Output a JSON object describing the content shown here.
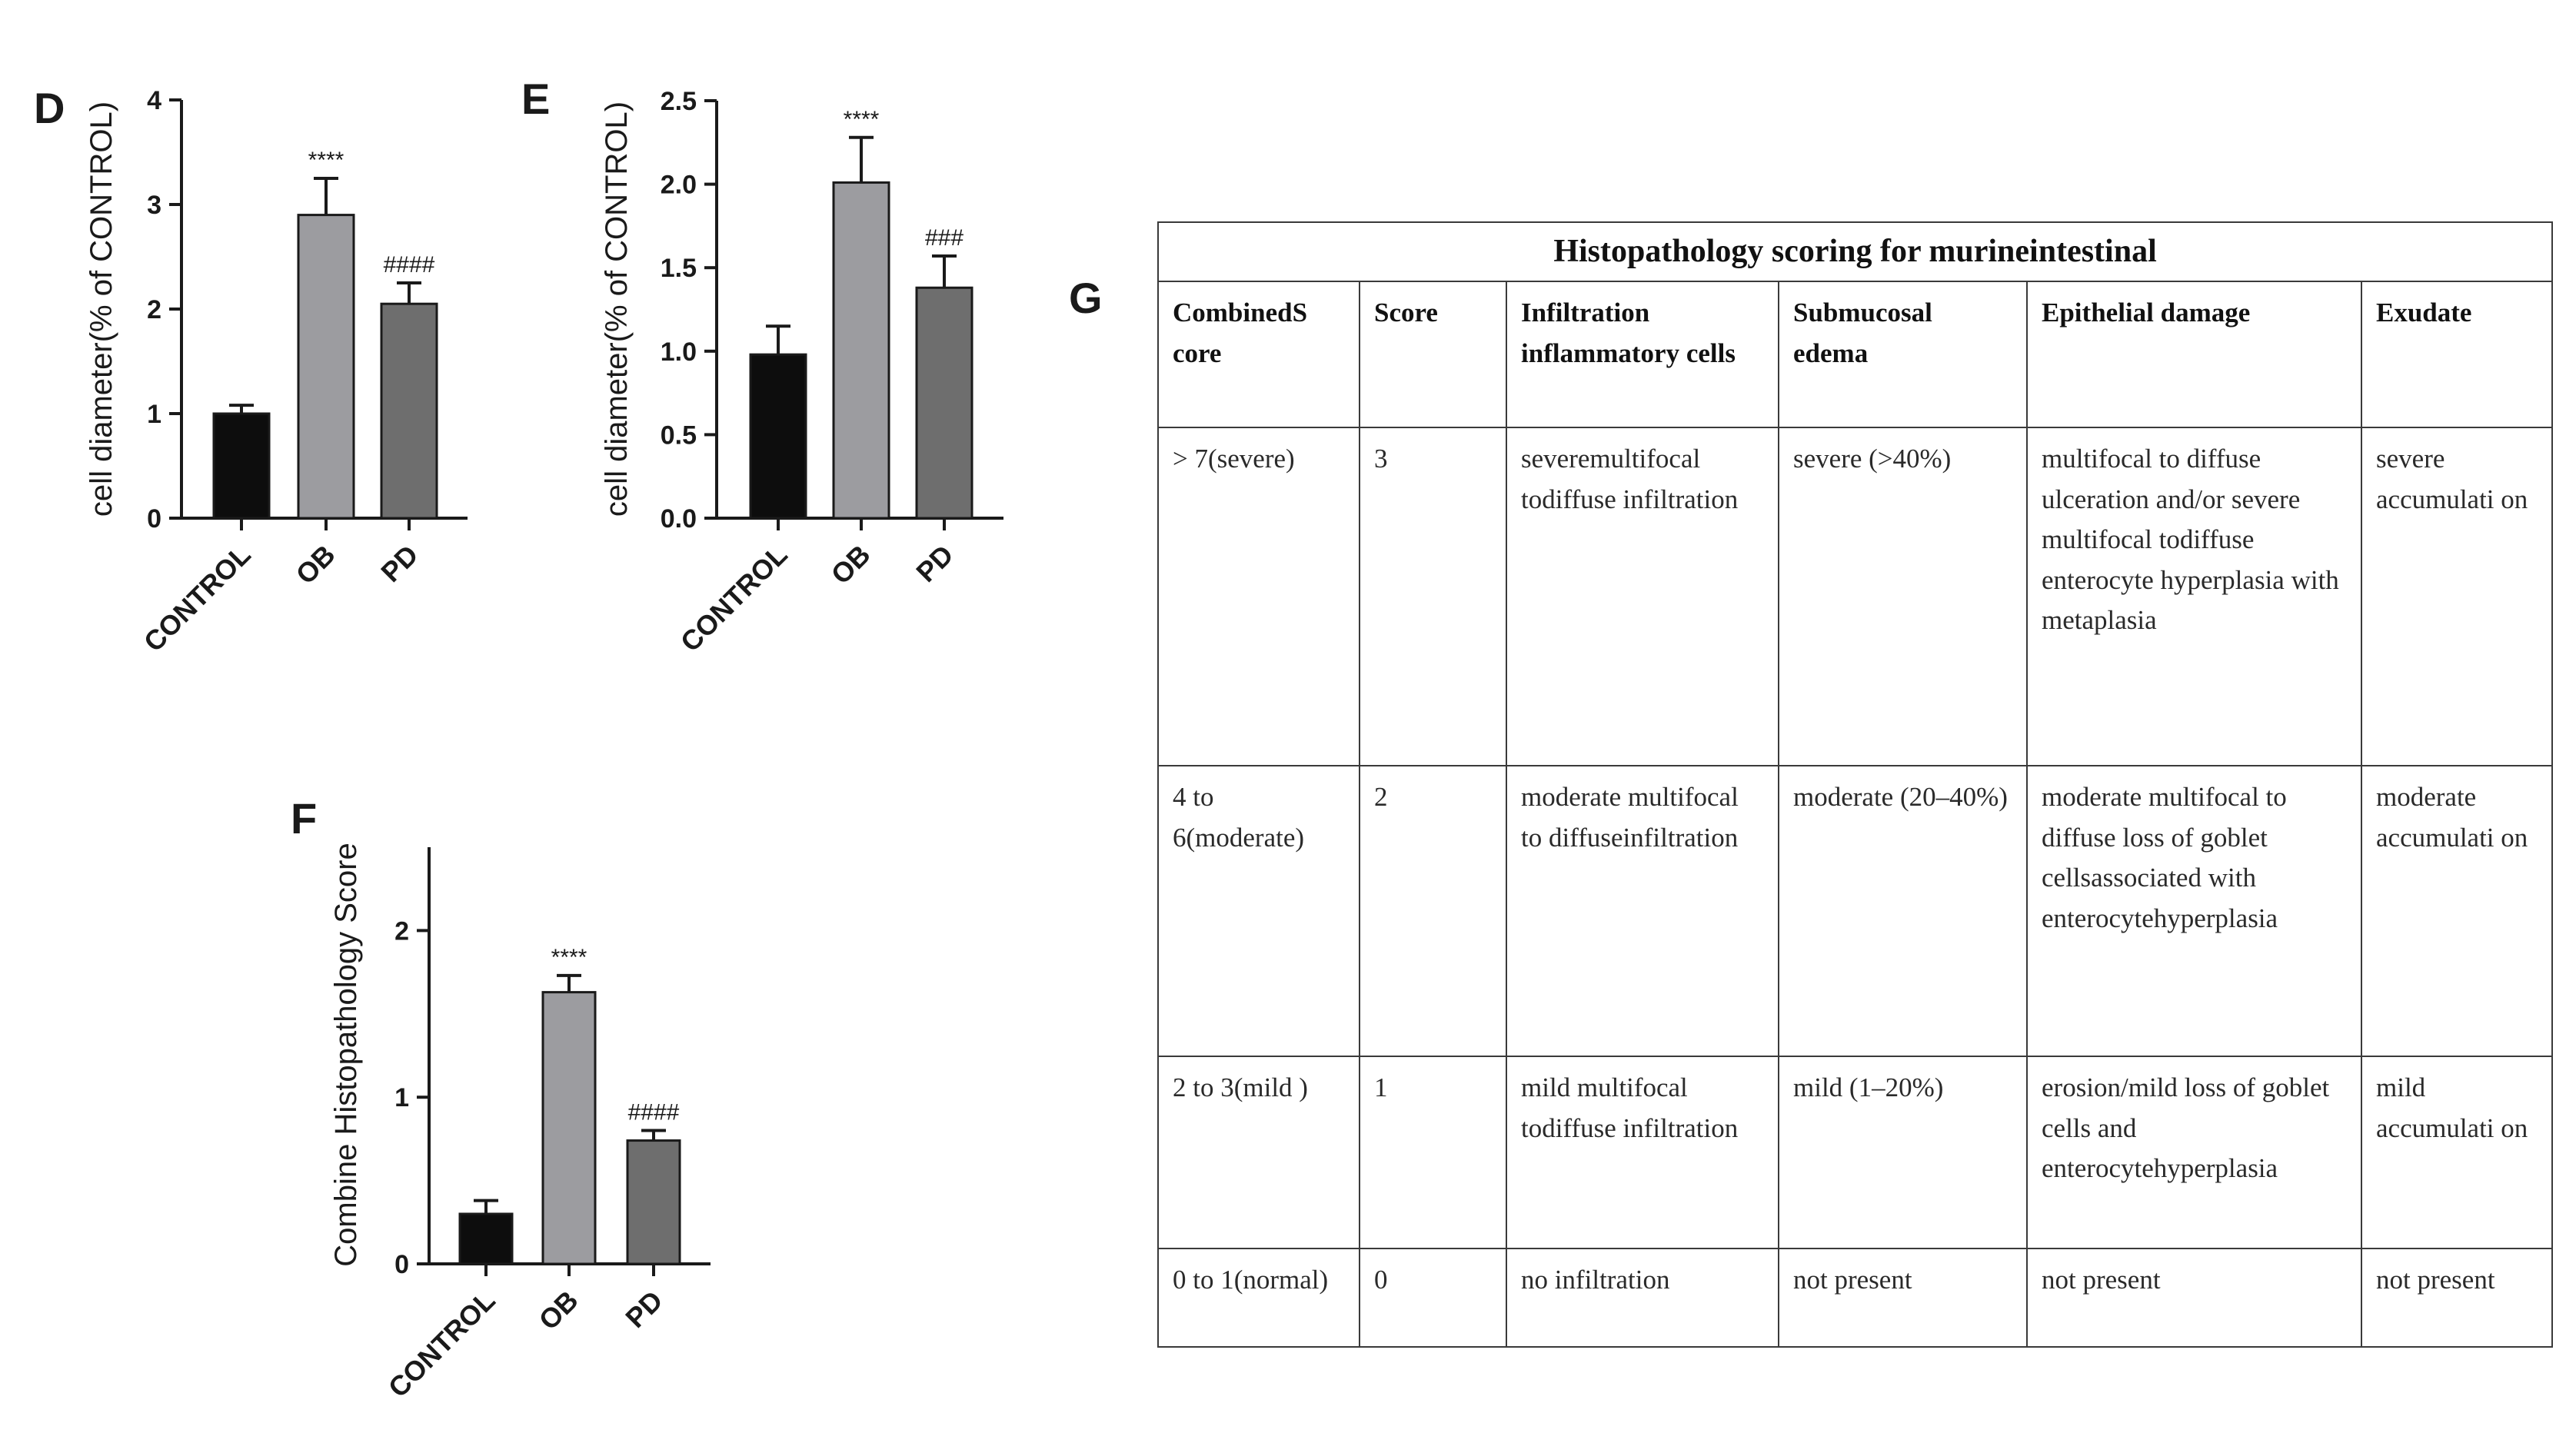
{
  "panels": {
    "d": "D",
    "e": "E",
    "f": "F",
    "g": "G"
  },
  "chart_data": [
    {
      "id": "D",
      "type": "bar",
      "categories": [
        "CONTROL",
        "OB",
        "PD"
      ],
      "values": [
        1.0,
        2.9,
        2.05
      ],
      "errors": [
        0.08,
        0.35,
        0.2
      ],
      "annotations": [
        "",
        "****",
        "####"
      ],
      "colors": [
        "#0d0d0d",
        "#9c9ca0",
        "#6e6e6e"
      ],
      "ylabel": "cell diameter(% of CONTROL)",
      "ylim": [
        0,
        4
      ],
      "yticks": [
        0,
        1,
        2,
        3,
        4
      ],
      "ytick_labels": [
        "0",
        "1",
        "2",
        "3",
        "4"
      ]
    },
    {
      "id": "E",
      "type": "bar",
      "categories": [
        "CONTROL",
        "OB",
        "PD"
      ],
      "values": [
        0.98,
        2.01,
        1.38
      ],
      "errors": [
        0.17,
        0.27,
        0.19
      ],
      "annotations": [
        "",
        "****",
        "###"
      ],
      "colors": [
        "#0d0d0d",
        "#9c9ca0",
        "#6e6e6e"
      ],
      "ylabel": "cell diameter(% of CONTROL)",
      "ylim": [
        0,
        2.5
      ],
      "yticks": [
        0,
        0.5,
        1.0,
        1.5,
        2.0,
        2.5
      ],
      "ytick_labels": [
        "0.0",
        "0.5",
        "1.0",
        "1.5",
        "2.0",
        "2.5"
      ]
    },
    {
      "id": "F",
      "type": "bar",
      "categories": [
        "CONTROL",
        "OB",
        "PD"
      ],
      "values": [
        0.3,
        1.63,
        0.74
      ],
      "errors": [
        0.08,
        0.1,
        0.06
      ],
      "annotations": [
        "",
        "****",
        "####"
      ],
      "colors": [
        "#0d0d0d",
        "#9c9ca0",
        "#6e6e6e"
      ],
      "ylabel": "Combine Histopathology Score",
      "ylim": [
        0,
        2.5
      ],
      "yticks": [
        0,
        1,
        2
      ],
      "ytick_labels": [
        "0",
        "1",
        "2"
      ]
    }
  ],
  "table": {
    "title": "Histopathology scoring for murineintestinal",
    "headers": [
      "CombinedS core",
      "Score",
      "Infiltration inflammatory cells",
      "Submucosal edema",
      "Epithelial damage",
      "Exudate"
    ],
    "rows": [
      [
        "> 7(severe)",
        "3",
        "severemultifocal todiffuse infiltration",
        "severe (>40%)",
        "multifocal to diffuse ulceration and/or severe multifocal todiffuse enterocyte hyperplasia with metaplasia",
        "severe accumulati on"
      ],
      [
        "4 to 6(moderate)",
        "2",
        "moderate multifocal to diffuseinfiltration",
        "moderate (20–40%)",
        "moderate multifocal to diffuse loss of goblet cellsassociated with enterocytehyperplasia",
        "moderate accumulati on"
      ],
      [
        "2 to 3(mild )",
        "1",
        "mild multifocal todiffuse infiltration",
        "mild (1–20%)",
        "erosion/mild loss of goblet cells and enterocytehyperplasia",
        "mild accumulati on"
      ],
      [
        "0 to 1(normal)",
        "0",
        "no infiltration",
        "not present",
        "not present",
        "not present"
      ]
    ]
  }
}
